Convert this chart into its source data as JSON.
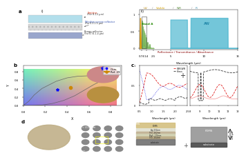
{
  "title": "",
  "bg_color": "#ffffff",
  "emitter_text": "Emitter",
  "emitter_sub": "(For 8-13 μm)",
  "window_text": "Window screen reflector",
  "window_sub": "(For 0.3-2.5 μm)",
  "bragg_text": "Bragg reflector",
  "bragg_sub": "(For 0.74-1.4 μm)",
  "band_a_label": "Band A",
  "aw_label": "AW",
  "wavelength_label": "Wavelength (μm)",
  "panel_c_title": "Reflectance / Transmittance / Absorbance",
  "cbr_label": "CBR-WR",
  "glass_label": "Glass",
  "ours_label": "Ours",
  "ref_label": "Ref. 29",
  "xy_xlabel": "X",
  "xy_ylabel": "Y",
  "uv_color": "#c8a000",
  "nir_color": "#70b050",
  "ir_color": "#50b8d0",
  "reflectance_color": "#e02020",
  "transmittance_color": "#3030e0",
  "absorbance_color": "#202020"
}
